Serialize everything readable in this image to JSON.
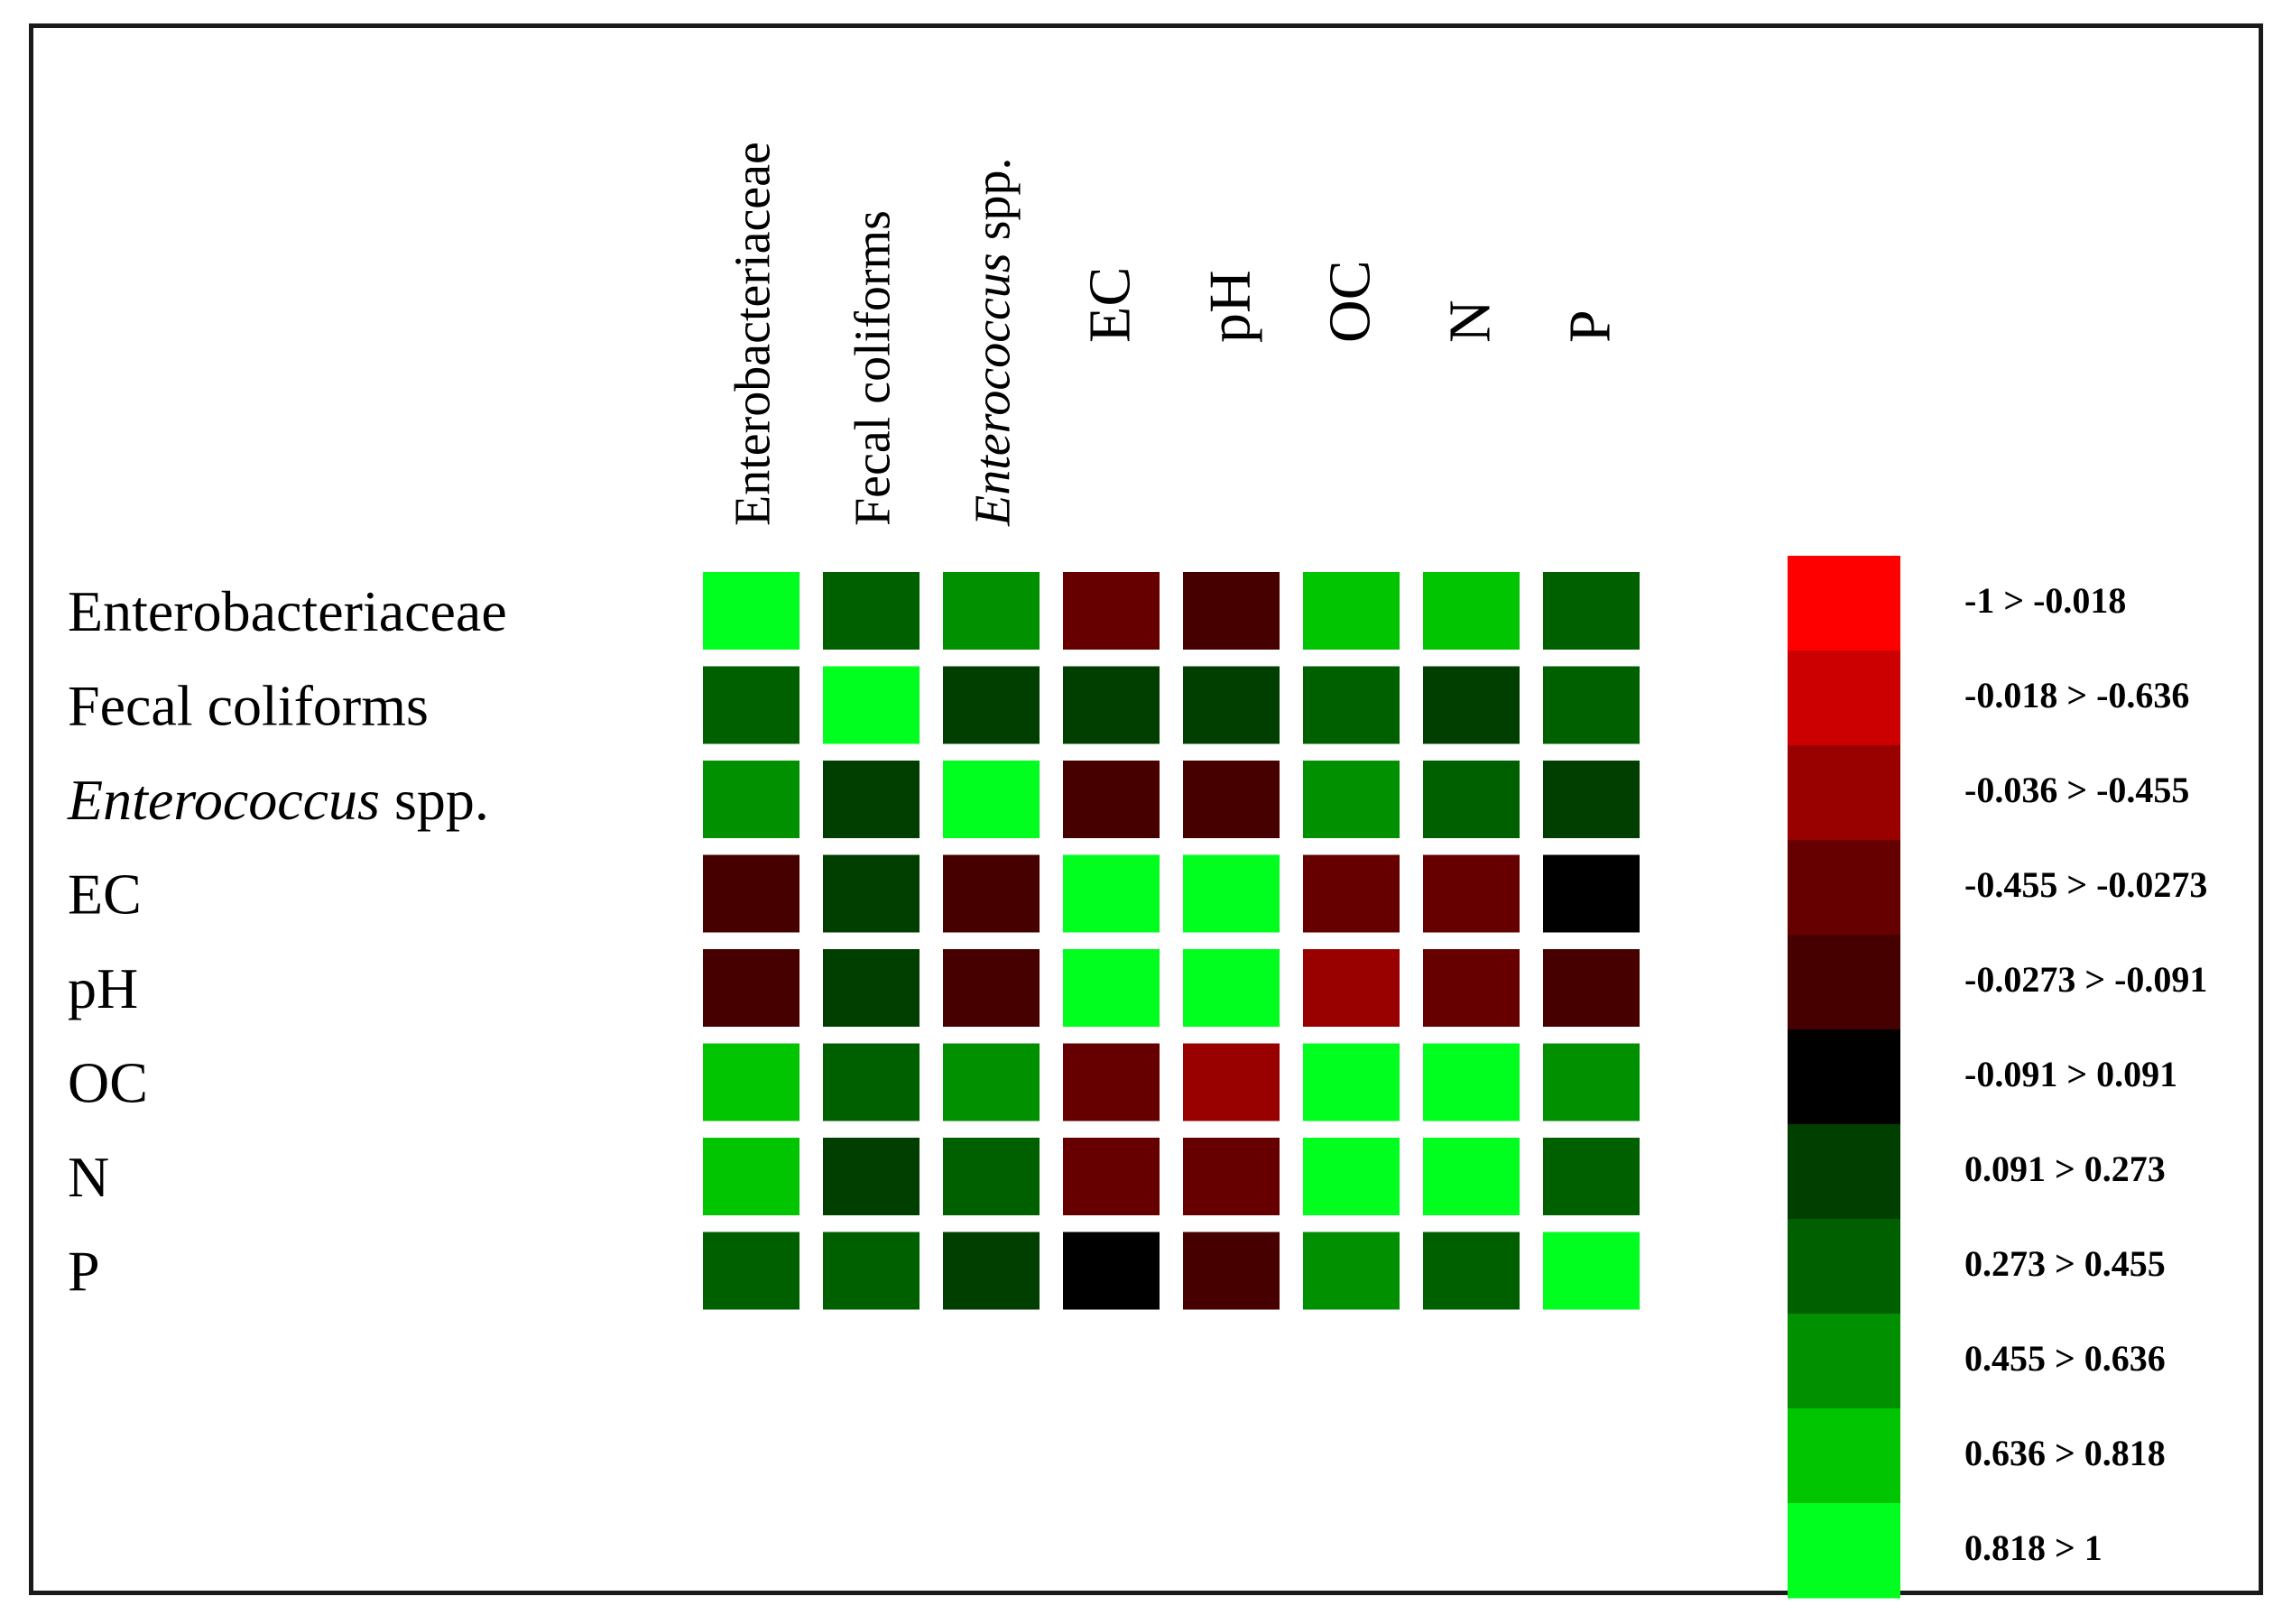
{
  "chart_data": {
    "type": "heatmap",
    "rows": [
      {
        "label": "Enterobacteriaceae",
        "italic": "",
        "rest": "Enterobacteriaceae"
      },
      {
        "label": "Fecal coliforms",
        "italic": "",
        "rest": "Fecal coliforms"
      },
      {
        "label": "Enterococcus spp.",
        "italic": "Enterococcus",
        "rest": " spp."
      },
      {
        "label": "EC",
        "italic": "",
        "rest": "EC"
      },
      {
        "label": "pH",
        "italic": "",
        "rest": "pH"
      },
      {
        "label": "OC",
        "italic": "",
        "rest": "OC"
      },
      {
        "label": "N",
        "italic": "",
        "rest": "N"
      },
      {
        "label": "P",
        "italic": "",
        "rest": "P"
      }
    ],
    "columns": [
      {
        "label": "Enterobacteriaceae",
        "italic": "",
        "rest": "Enterobacteriaceae"
      },
      {
        "label": "Fecal coliforms",
        "italic": "",
        "rest": "Fecal coliforms"
      },
      {
        "label": "Enterococcus spp.",
        "italic": "Enterococcus",
        "rest": " spp."
      },
      {
        "label": "EC",
        "italic": "",
        "rest": "EC"
      },
      {
        "label": "pH",
        "italic": "",
        "rest": "pH"
      },
      {
        "label": "OC",
        "italic": "",
        "rest": "OC"
      },
      {
        "label": "N",
        "italic": "",
        "rest": "N"
      },
      {
        "label": "P",
        "italic": "",
        "rest": "P"
      }
    ],
    "bin_matrix": [
      [
        10,
        7,
        8,
        3,
        4,
        9,
        9,
        7
      ],
      [
        7,
        10,
        6,
        6,
        6,
        7,
        6,
        7
      ],
      [
        8,
        6,
        10,
        4,
        4,
        8,
        7,
        6
      ],
      [
        4,
        6,
        4,
        10,
        10,
        3,
        3,
        5
      ],
      [
        4,
        6,
        4,
        10,
        10,
        2,
        3,
        4
      ],
      [
        9,
        7,
        8,
        3,
        2,
        10,
        10,
        8
      ],
      [
        9,
        6,
        7,
        3,
        3,
        10,
        10,
        7
      ],
      [
        7,
        7,
        6,
        5,
        4,
        8,
        7,
        10
      ]
    ],
    "legend": [
      {
        "label": "-1 > -0.018",
        "color": "#ff0000"
      },
      {
        "label": "-0.018 > -0.636",
        "color": "#cc0000"
      },
      {
        "label": "-0.036 > -0.455",
        "color": "#990000"
      },
      {
        "label": "-0.455 > -0.0273",
        "color": "#660000"
      },
      {
        "label": "-0.0273 > -0.091",
        "color": "#460000"
      },
      {
        "label": "-0.091 > 0.091",
        "color": "#000000"
      },
      {
        "label": "0.091 > 0.273",
        "color": "#003f00"
      },
      {
        "label": "0.273 > 0.455",
        "color": "#006000"
      },
      {
        "label": "0.455 > 0.636",
        "color": "#009000"
      },
      {
        "label": "0.636 > 0.818",
        "color": "#00c500"
      },
      {
        "label": "0.818 > 1",
        "color": "#00ff1e"
      }
    ],
    "grid": false,
    "legend_placement": "right"
  }
}
